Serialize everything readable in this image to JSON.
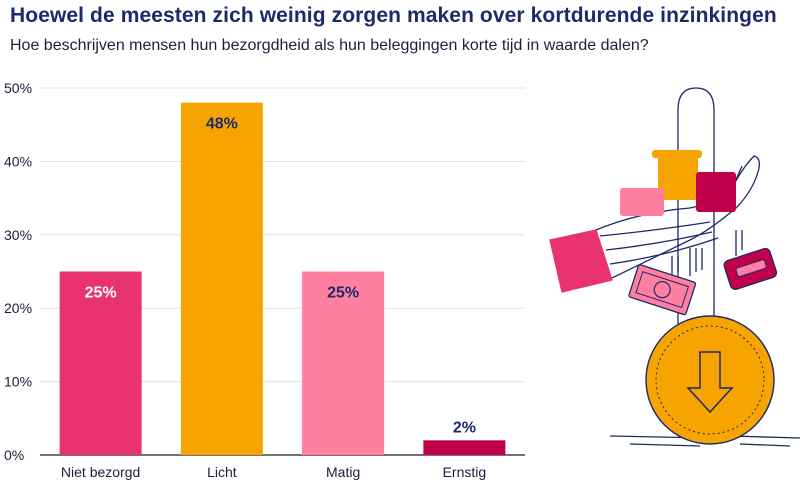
{
  "title": "Hoewel de meesten zich weinig zorgen maken over kortdurende inzinkingen",
  "subtitle": "Hoe beschrijven mensen hun bezorgdheid als hun beleggingen korte tijd in waarde dalen?",
  "chart_data": {
    "type": "bar",
    "categories": [
      "Niet bezorgd",
      "Licht",
      "Matig",
      "Ernstig"
    ],
    "values": [
      25,
      48,
      25,
      2
    ],
    "data_labels": [
      "25%",
      "48%",
      "25%",
      "2%"
    ],
    "colors": [
      "#e8336e",
      "#f7a400",
      "#ff7fa0",
      "#c0004a"
    ],
    "label_colors": [
      "#ffffff",
      "#1c2a6b",
      "#1c2a6b",
      "#1c2a6b"
    ],
    "label_position": [
      "inside",
      "inside",
      "inside",
      "above"
    ],
    "ylim": [
      0,
      50
    ],
    "yticks": [
      0,
      10,
      20,
      30,
      40,
      50
    ],
    "ytick_labels": [
      "0%",
      "10%",
      "20%",
      "30%",
      "40%",
      "50%"
    ],
    "grid": true,
    "xlabel": "",
    "ylabel": ""
  },
  "illustration": {
    "icon": "hand-dropping-money-icon",
    "colors": {
      "navy": "#1c2a6b",
      "pink": "#e8336e",
      "light_pink": "#ff7fa0",
      "orange": "#f7a400",
      "magenta": "#c0004a"
    }
  }
}
